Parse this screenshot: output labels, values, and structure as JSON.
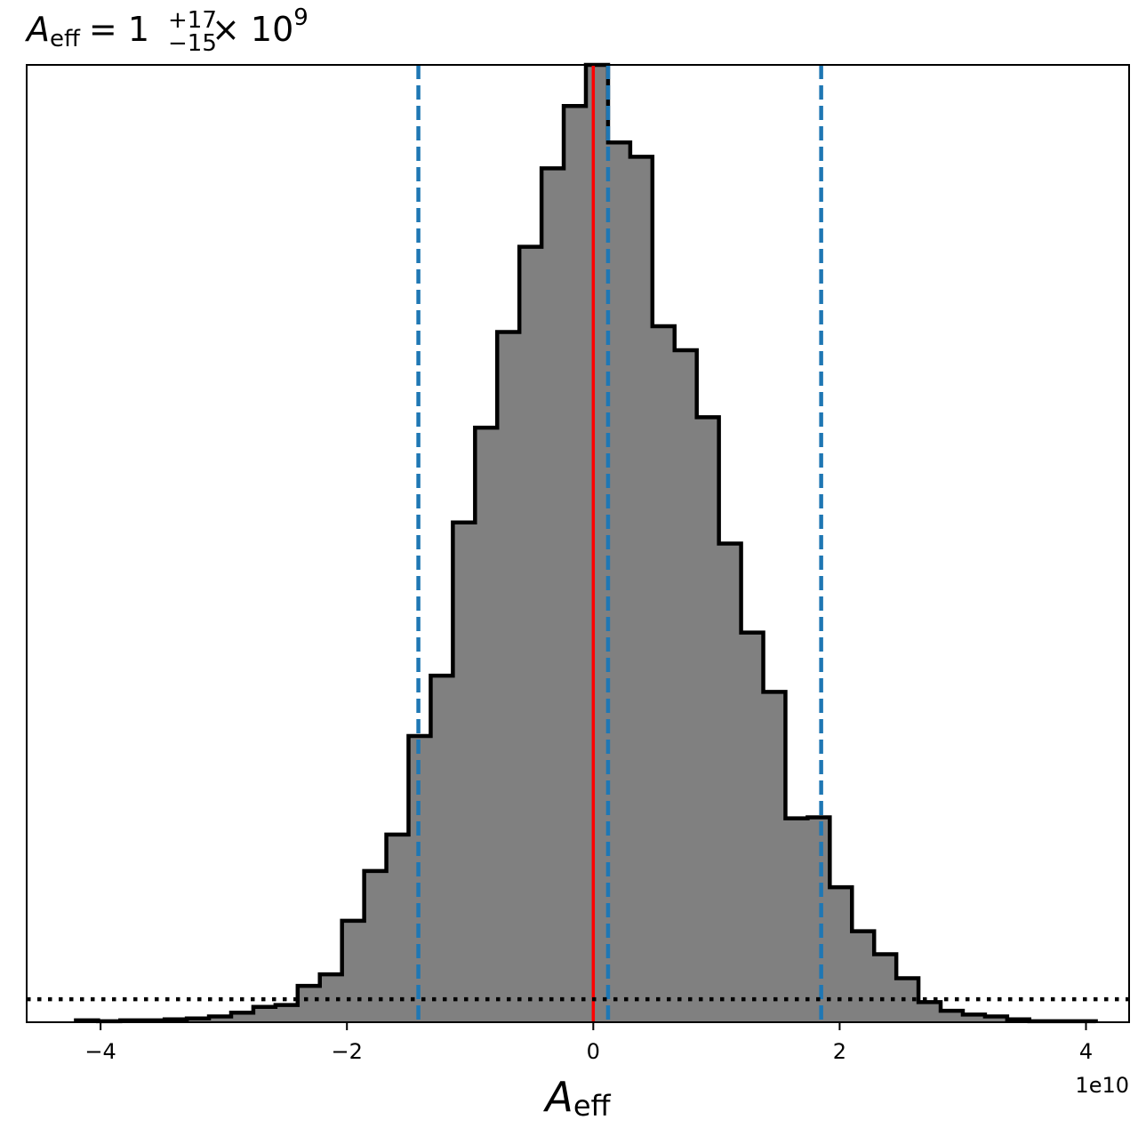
{
  "chart_data": {
    "type": "bar",
    "title": {
      "symbol": "A",
      "symbol_sub": "eff",
      "equals": "= 1",
      "plus_err": "+17",
      "minus_err": "−15",
      "times": "× 10",
      "exponent": "9"
    },
    "xlabel": {
      "symbol": "A",
      "sub": "eff"
    },
    "x_offset_label": "1e10",
    "xlim": [
      -4.6,
      4.35
    ],
    "ylim": [
      0,
      1.0
    ],
    "x_ticks": [
      -4,
      -2,
      0,
      2,
      4
    ],
    "x_tick_labels": [
      "−4",
      "−2",
      "0",
      "2",
      "4"
    ],
    "y_ticks_shown": false,
    "histogram": {
      "bin_edges": [
        -4.2,
        -4.02,
        -3.84,
        -3.66,
        -3.48,
        -3.3,
        -3.12,
        -2.94,
        -2.76,
        -2.58,
        -2.4,
        -2.22,
        -2.04,
        -1.86,
        -1.68,
        -1.5,
        -1.32,
        -1.14,
        -0.96,
        -0.78,
        -0.6,
        -0.42,
        -0.24,
        -0.06,
        0.12,
        0.3,
        0.48,
        0.66,
        0.84,
        1.02,
        1.2,
        1.38,
        1.56,
        1.74,
        1.92,
        2.1,
        2.28,
        2.46,
        2.64,
        2.82,
        3.0,
        3.18,
        3.36,
        3.54,
        3.72,
        3.9,
        4.08
      ],
      "counts": [
        0.002,
        0.001,
        0.002,
        0.002,
        0.003,
        0.004,
        0.006,
        0.01,
        0.016,
        0.018,
        0.038,
        0.05,
        0.106,
        0.158,
        0.196,
        0.299,
        0.362,
        0.522,
        0.621,
        0.721,
        0.81,
        0.892,
        0.957,
        1.0,
        0.919,
        0.904,
        0.727,
        0.702,
        0.632,
        0.5,
        0.407,
        0.345,
        0.213,
        0.214,
        0.141,
        0.095,
        0.071,
        0.046,
        0.021,
        0.012,
        0.008,
        0.006,
        0.003,
        0.001,
        0.001,
        0.001
      ],
      "fill_color": "#808080",
      "edge_color": "#000000"
    },
    "vlines": [
      {
        "x": -1.42,
        "style": "dashed",
        "color": "#1f77b4"
      },
      {
        "x": 0.12,
        "style": "dashed",
        "color": "#1f77b4"
      },
      {
        "x": 1.85,
        "style": "dashed",
        "color": "#1f77b4"
      },
      {
        "x": 0.0,
        "style": "solid",
        "color": "#ff0000"
      }
    ],
    "prior_line": {
      "style": "dotted",
      "color": "#000000",
      "points": [
        [
          -4.6,
          0.024
        ],
        [
          4.35,
          0.024
        ]
      ]
    },
    "grid": false
  }
}
